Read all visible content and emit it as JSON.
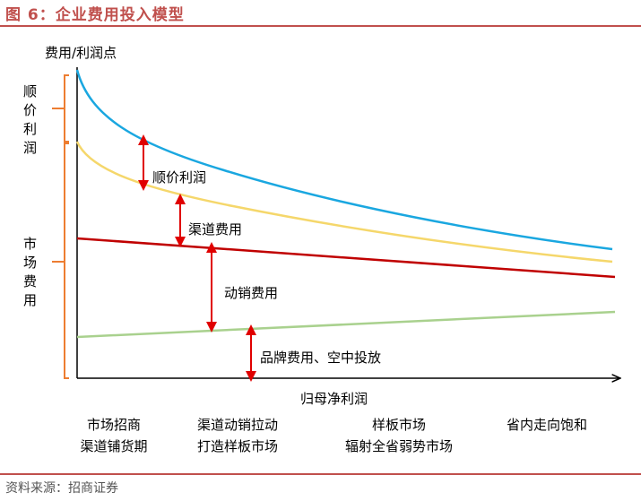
{
  "figure_title": "图 6：企业费用投入模型",
  "y_axis_label": "费用/利润点",
  "x_axis_label": "归母净利润",
  "bracket_labels": {
    "top": "顺价利润",
    "bottom": "市场费用"
  },
  "gap_labels": {
    "g1": "顺价利润",
    "g2": "渠道费用",
    "g3": "动销费用",
    "g4": "品牌费用、空中投放"
  },
  "stages": [
    {
      "line1": "市场招商",
      "line2": "渠道铺货期"
    },
    {
      "line1": "渠道动销拉动",
      "line2": "打造样板市场"
    },
    {
      "line1": "样板市场",
      "line2": "辐射全省弱势市场"
    },
    {
      "line1": "省内走向饱和",
      "line2": ""
    }
  ],
  "colors": {
    "title": "#c0504d",
    "blue_curve": "#1aa7e0",
    "yellow_curve": "#f5d76b",
    "red_line": "#c00000",
    "green_line": "#a9d18e",
    "bracket": "#ed7d31",
    "arrow": "#e00000"
  },
  "source": "资料来源：招商证券"
}
